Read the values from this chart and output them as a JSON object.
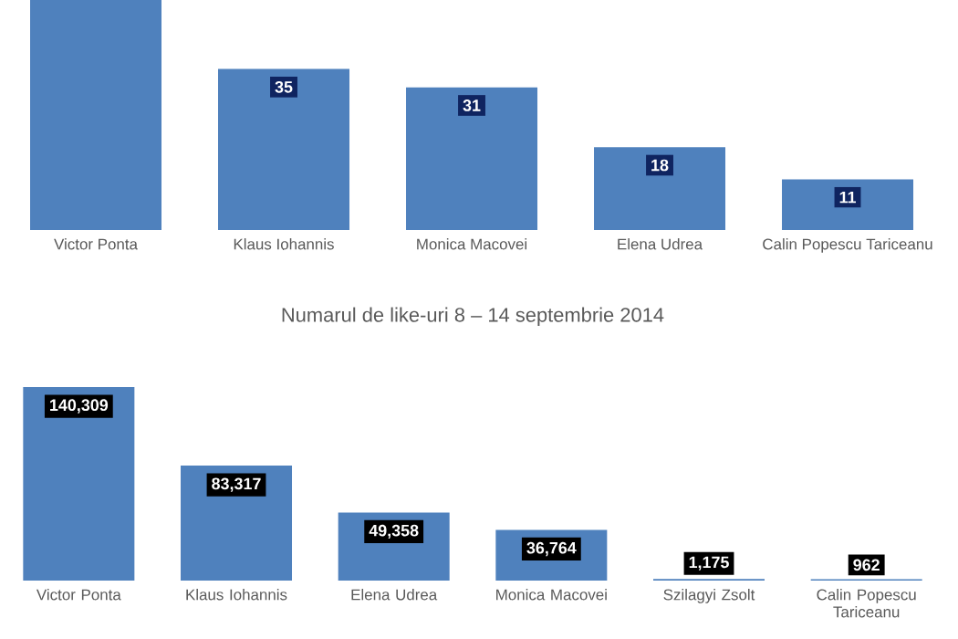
{
  "chart_data": [
    {
      "type": "bar",
      "categories": [
        "Victor Ponta",
        "Klaus Iohannis",
        "Monica Macovei",
        "Elena Udrea",
        "Calin Popescu Tariceanu"
      ],
      "values": [
        50,
        35,
        31,
        18,
        11
      ],
      "value_labels": [
        null,
        "35",
        "31",
        "18",
        "11"
      ],
      "color": "#4f81bd",
      "tick_labels": "x"
    },
    {
      "type": "bar",
      "title": "Numarul de like-uri  8 – 14  septembrie 2014",
      "categories": [
        "Victor Ponta",
        "Klaus Iohannis",
        "Elena Udrea",
        "Monica Macovei",
        "Szilagyi Zsolt",
        "Calin Popescu Tariceanu"
      ],
      "values": [
        140309,
        83317,
        49358,
        36764,
        1175,
        962
      ],
      "value_labels": [
        "140,309",
        "83,317",
        "49,358",
        "36,764",
        "1,175",
        "962"
      ],
      "color": "#4f81bd",
      "tick_labels": "x"
    }
  ]
}
